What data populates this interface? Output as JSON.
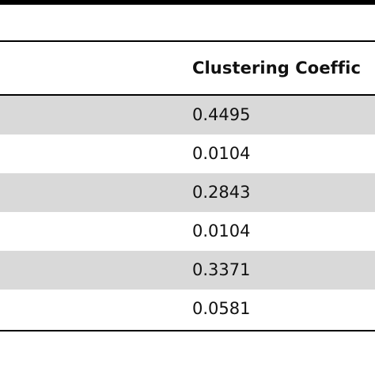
{
  "table": {
    "headers": [
      "",
      "Clustering Coeffic"
    ],
    "rows": [
      {
        "name": "",
        "value": "0.4495",
        "shaded": true
      },
      {
        "name": "",
        "value": "0.0104",
        "shaded": false
      },
      {
        "name": "",
        "value": "0.2843",
        "shaded": true
      },
      {
        "name": "",
        "value": "0.0104",
        "shaded": false
      },
      {
        "name": "",
        "value": "0.3371",
        "shaded": true
      },
      {
        "name": "",
        "value": "0.0581",
        "shaded": false
      }
    ]
  },
  "colors": {
    "row_shade": "#d9d9d9",
    "rules": "#000000"
  }
}
